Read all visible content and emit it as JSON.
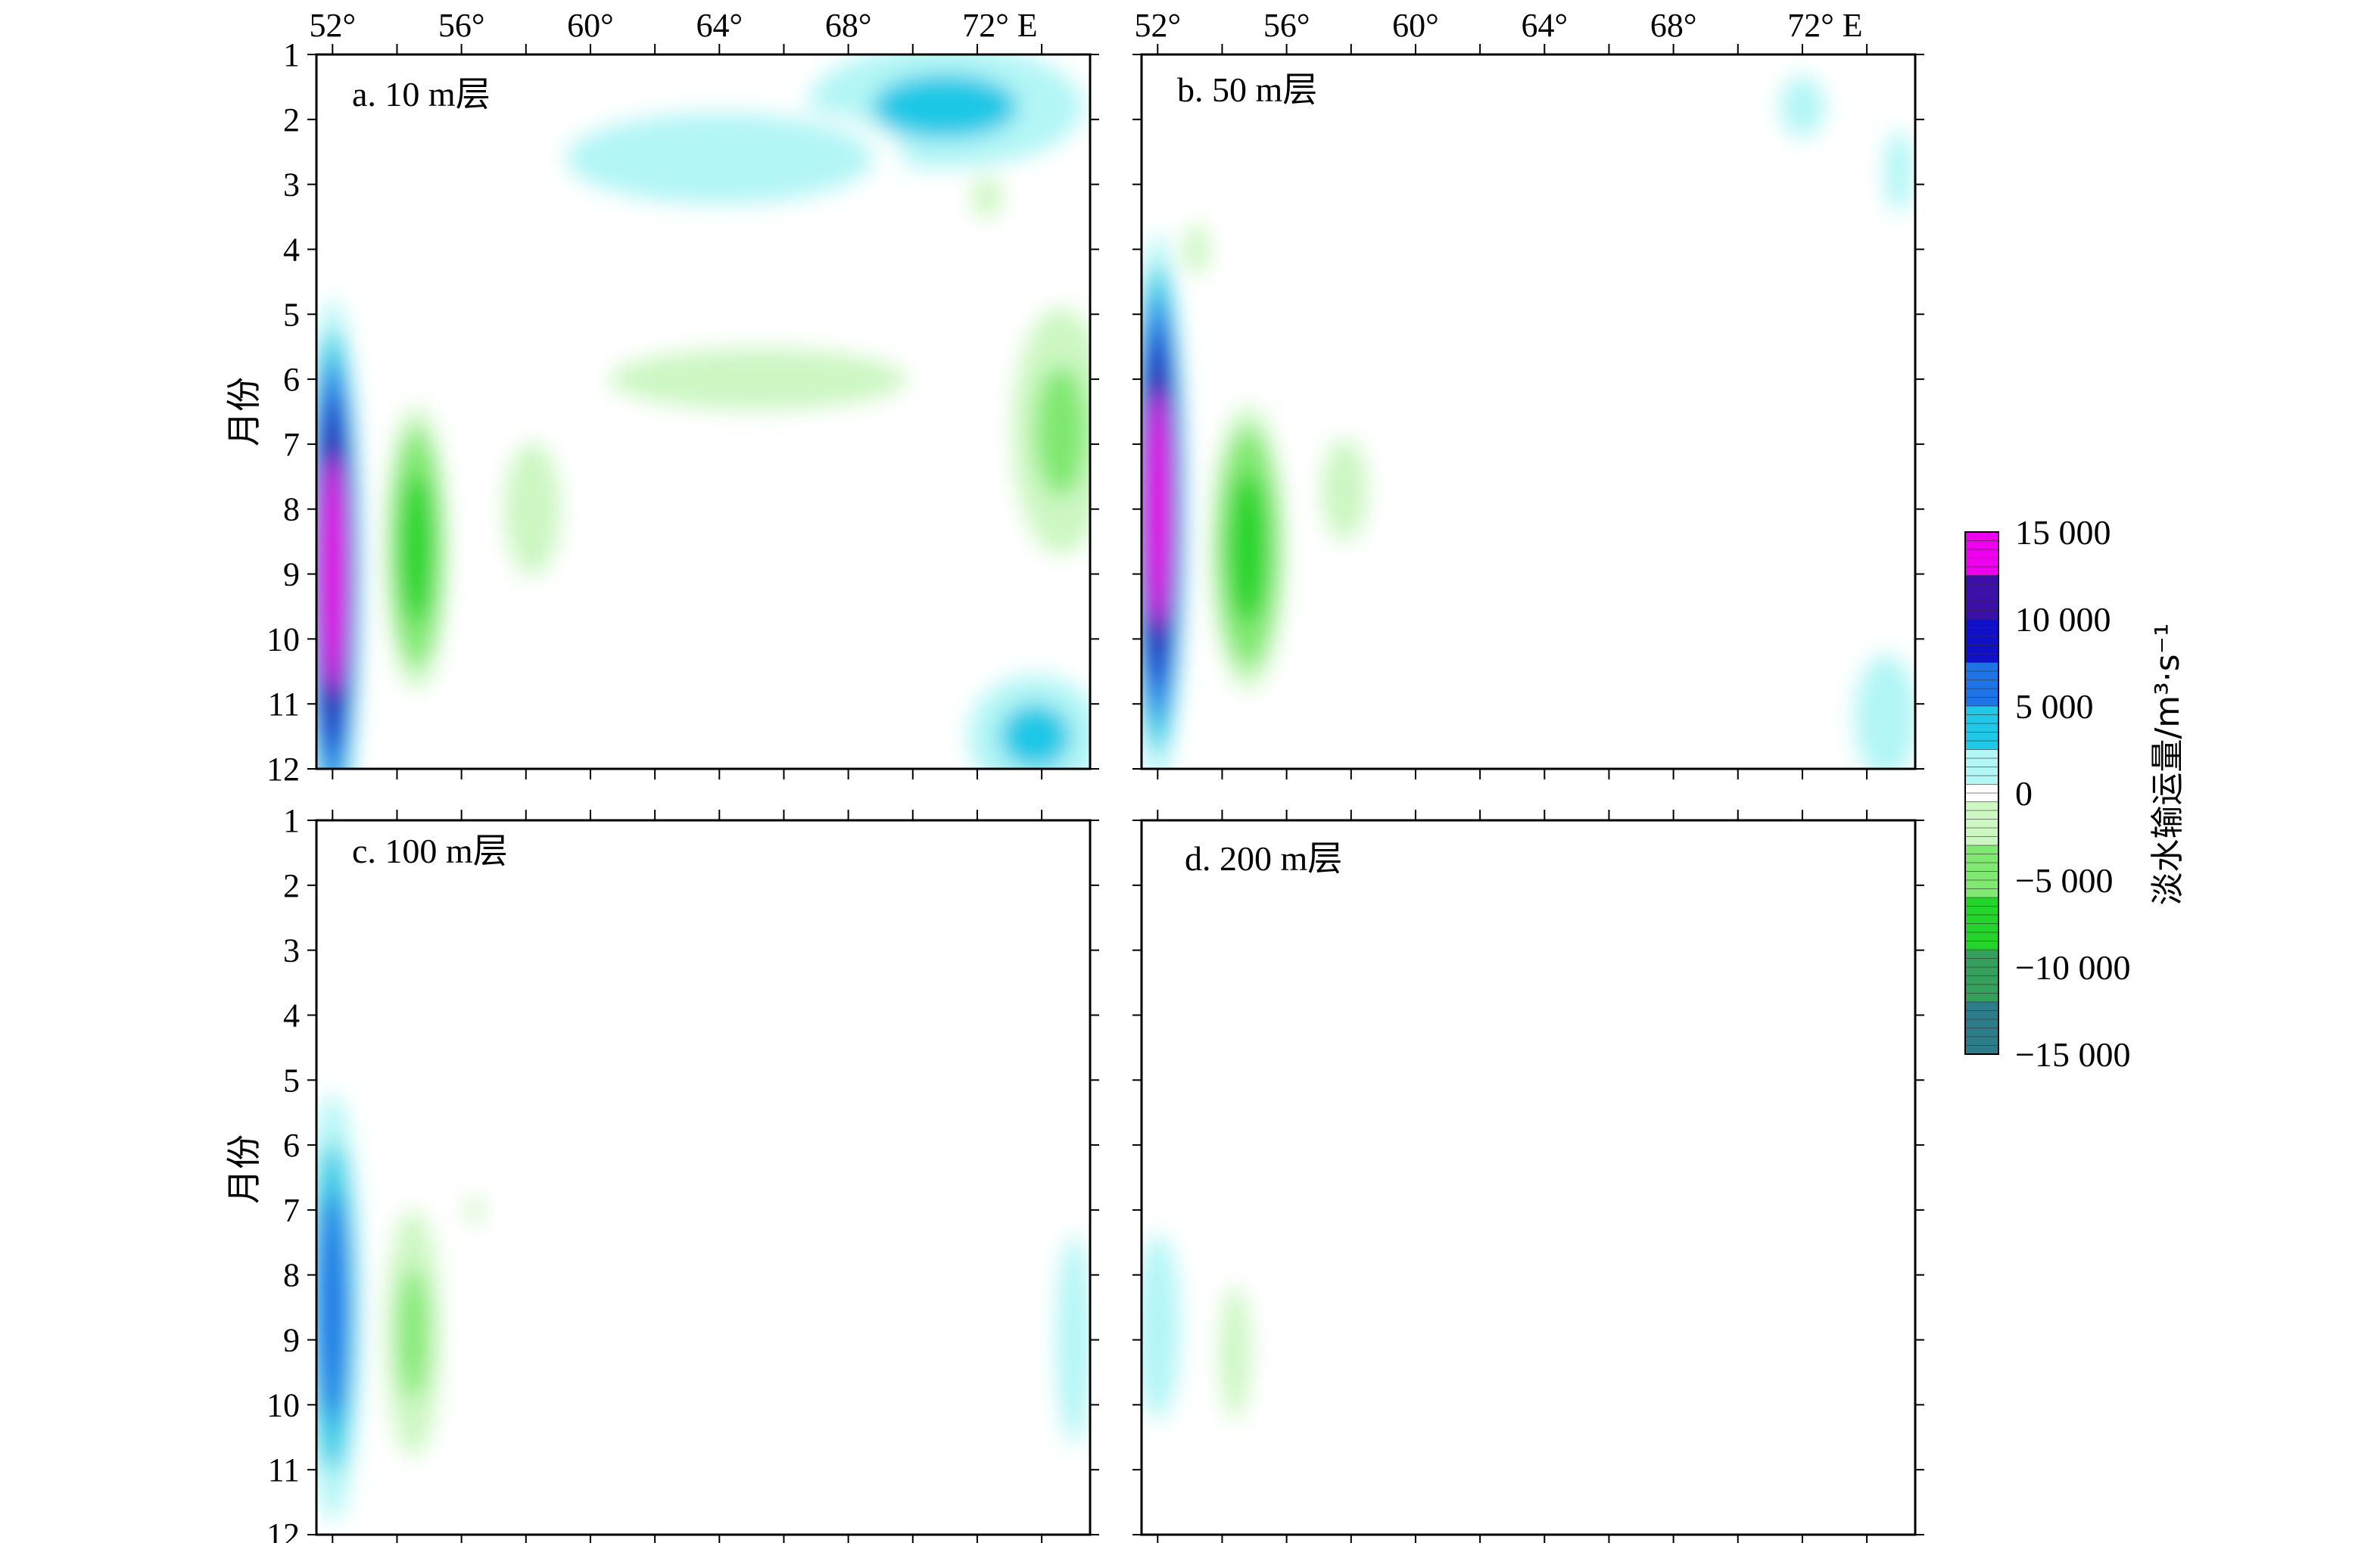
{
  "figure": {
    "title": "",
    "y_axis_label": "月份",
    "colorbar_label": "淡水输运量/m³·s⁻¹",
    "colorbar_ticks": [
      "15 000",
      "10 000",
      "5 000",
      "0",
      "−5 000",
      "−10 000",
      "−15 000"
    ]
  },
  "chart_data": [
    {
      "type": "heatmap",
      "panel_label": "a. 10 m层",
      "x_tick_labels": [
        "52°",
        "56°",
        "60°",
        "64°",
        "68°",
        "72° E"
      ],
      "y_tick_labels": [
        "1",
        "2",
        "3",
        "4",
        "5",
        "6",
        "7",
        "8",
        "9",
        "10",
        "11",
        "12"
      ],
      "xlim": [
        51.5,
        75.5
      ],
      "ylim": [
        1,
        12
      ],
      "features": [
        {
          "shape": "band",
          "lon_center": 52.0,
          "lon_halfwidth": 0.75,
          "month_range": [
            3.0,
            12.0
          ],
          "peak_value": 14000,
          "peak_month": 9.0
        },
        {
          "shape": "blob",
          "lon": 54.6,
          "month": 8.6,
          "lon_radius": 1.0,
          "month_radius": 2.3,
          "value": -7500
        },
        {
          "shape": "blob",
          "lon": 74.6,
          "month": 6.8,
          "lon_radius": 1.6,
          "month_radius": 2.0,
          "value": -4500
        },
        {
          "shape": "blob",
          "lon": 65.2,
          "month": 6.0,
          "lon_radius": 5.8,
          "month_radius": 0.6,
          "value": -2500
        },
        {
          "shape": "blob",
          "lon": 58.2,
          "month": 8.0,
          "lon_radius": 1.1,
          "month_radius": 1.3,
          "value": -2000
        },
        {
          "shape": "blob",
          "lon": 71.0,
          "month": 1.8,
          "lon_radius": 4.5,
          "month_radius": 1.0,
          "value": 3500
        },
        {
          "shape": "blob",
          "lon": 64.0,
          "month": 2.6,
          "lon_radius": 6.0,
          "month_radius": 0.9,
          "value": 1500
        },
        {
          "shape": "blob",
          "lon": 73.8,
          "month": 11.5,
          "lon_radius": 2.2,
          "month_radius": 1.0,
          "value": 3500
        },
        {
          "shape": "blob",
          "lon": 72.3,
          "month": 3.2,
          "lon_radius": 0.6,
          "month_radius": 0.4,
          "value": -1500
        }
      ]
    },
    {
      "type": "heatmap",
      "panel_label": "b. 50 m层",
      "x_tick_labels": [
        "52°",
        "56°",
        "60°",
        "64°",
        "68°",
        "72° E"
      ],
      "y_tick_labels": [],
      "xlim": [
        51.5,
        75.5
      ],
      "ylim": [
        1,
        12
      ],
      "features": [
        {
          "shape": "band",
          "lon_center": 52.0,
          "lon_halfwidth": 0.75,
          "month_range": [
            3.0,
            12.0
          ],
          "peak_value": 12500,
          "peak_month": 8.0
        },
        {
          "shape": "blob",
          "lon": 54.8,
          "month": 8.6,
          "lon_radius": 1.2,
          "month_radius": 2.3,
          "value": -7500
        },
        {
          "shape": "blob",
          "lon": 57.8,
          "month": 7.7,
          "lon_radius": 0.9,
          "month_radius": 1.0,
          "value": -2500
        },
        {
          "shape": "blob",
          "lon": 53.2,
          "month": 4.0,
          "lon_radius": 0.5,
          "month_radius": 0.5,
          "value": -1800
        },
        {
          "shape": "blob",
          "lon": 72.0,
          "month": 1.8,
          "lon_radius": 0.9,
          "month_radius": 0.6,
          "value": 1500
        },
        {
          "shape": "blob",
          "lon": 75.0,
          "month": 2.8,
          "lon_radius": 0.6,
          "month_radius": 0.8,
          "value": 1500
        },
        {
          "shape": "blob",
          "lon": 74.6,
          "month": 11.2,
          "lon_radius": 1.6,
          "month_radius": 1.5,
          "value": 1200
        }
      ]
    },
    {
      "type": "heatmap",
      "panel_label": "c. 100 m层",
      "x_tick_labels": [],
      "y_tick_labels": [
        "1",
        "2",
        "3",
        "4",
        "5",
        "6",
        "7",
        "8",
        "9",
        "10",
        "11",
        "12"
      ],
      "xlim": [
        51.5,
        75.5
      ],
      "ylim": [
        1,
        12
      ],
      "features": [
        {
          "shape": "band",
          "lon_center": 52.0,
          "lon_halfwidth": 0.75,
          "month_range": [
            4.5,
            11.5
          ],
          "peak_value": 6500,
          "peak_month": 8.5
        },
        {
          "shape": "blob",
          "lon": 54.5,
          "month": 8.9,
          "lon_radius": 0.9,
          "month_radius": 2.0,
          "value": -4500
        },
        {
          "shape": "blob",
          "lon": 56.4,
          "month": 7.0,
          "lon_radius": 0.3,
          "month_radius": 0.3,
          "value": -1500
        },
        {
          "shape": "blob",
          "lon": 75.0,
          "month": 9.0,
          "lon_radius": 0.9,
          "month_radius": 2.5,
          "value": 1200
        }
      ]
    },
    {
      "type": "heatmap",
      "panel_label": "d. 200 m层",
      "x_tick_labels": [],
      "y_tick_labels": [],
      "xlim": [
        51.5,
        75.5
      ],
      "ylim": [
        1,
        12
      ],
      "features": [
        {
          "shape": "blob",
          "lon": 52.0,
          "month": 8.8,
          "lon_radius": 0.9,
          "month_radius": 1.8,
          "value": 1500
        },
        {
          "shape": "blob",
          "lon": 54.4,
          "month": 9.2,
          "lon_radius": 0.6,
          "month_radius": 1.3,
          "value": -1800
        }
      ]
    }
  ],
  "colors": {
    "scale": [
      "#ee00ee",
      "#3b0fa8",
      "#1010c8",
      "#1e74e6",
      "#1fc8e6",
      "#b3f6f6",
      "#ffffff",
      "#ccf7c2",
      "#7fe870",
      "#23d42a",
      "#34a05c",
      "#2d7c8a"
    ]
  }
}
